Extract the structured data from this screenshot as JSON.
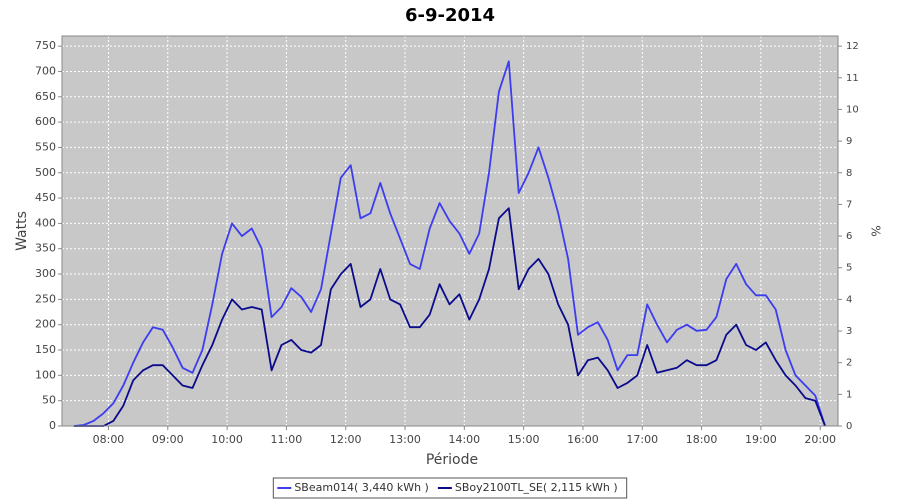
{
  "chart_data": {
    "type": "line",
    "title": "6-9-2014",
    "x_label": "Période",
    "y_label": "Watts",
    "y2_label": "%",
    "x": [
      445,
      455,
      465,
      475,
      485,
      495,
      505,
      515,
      525,
      535,
      545,
      555,
      565,
      575,
      585,
      595,
      605,
      615,
      625,
      635,
      645,
      655,
      665,
      675,
      685,
      695,
      705,
      715,
      725,
      735,
      745,
      755,
      765,
      775,
      785,
      795,
      805,
      815,
      825,
      835,
      845,
      855,
      865,
      875,
      885,
      895,
      905,
      915,
      925,
      935,
      945,
      955,
      965,
      975,
      985,
      995,
      1005,
      1015,
      1025,
      1035,
      1045,
      1055,
      1065,
      1075,
      1085,
      1095,
      1105,
      1115,
      1125,
      1135,
      1145,
      1155,
      1165,
      1175,
      1185,
      1195,
      1205
    ],
    "series": [
      {
        "name": "SBeam014( 3,440 kWh )",
        "color": "#3c3cf0",
        "values": [
          0,
          2,
          10,
          25,
          45,
          80,
          125,
          165,
          195,
          190,
          155,
          115,
          105,
          150,
          240,
          340,
          400,
          375,
          390,
          350,
          215,
          235,
          272,
          255,
          225,
          270,
          380,
          490,
          515,
          410,
          420,
          480,
          420,
          370,
          320,
          310,
          390,
          440,
          405,
          380,
          340,
          380,
          500,
          660,
          720,
          460,
          500,
          550,
          490,
          420,
          330,
          180,
          195,
          205,
          170,
          110,
          140,
          140,
          240,
          200,
          165,
          190,
          200,
          188,
          190,
          215,
          290,
          320,
          280,
          258,
          258,
          230,
          150,
          100,
          80,
          60,
          0
        ]
      },
      {
        "name": "SBoy2100TL_SE( 2,115 kWh )",
        "color": "#0a0a8c",
        "values": [
          0,
          0,
          0,
          0,
          10,
          40,
          90,
          110,
          120,
          120,
          100,
          80,
          75,
          120,
          160,
          210,
          250,
          230,
          235,
          230,
          110,
          160,
          170,
          150,
          145,
          160,
          270,
          300,
          320,
          235,
          250,
          310,
          250,
          240,
          195,
          195,
          220,
          280,
          240,
          260,
          210,
          250,
          310,
          410,
          430,
          270,
          310,
          330,
          300,
          240,
          200,
          100,
          130,
          135,
          110,
          75,
          85,
          100,
          160,
          105,
          110,
          115,
          130,
          120,
          120,
          130,
          180,
          200,
          160,
          150,
          165,
          130,
          100,
          80,
          55,
          50,
          0
        ]
      }
    ],
    "xlim": [
      433,
      1218
    ],
    "xticks": [
      {
        "value": 480,
        "label": "08:00"
      },
      {
        "value": 540,
        "label": "09:00"
      },
      {
        "value": 600,
        "label": "10:00"
      },
      {
        "value": 660,
        "label": "11:00"
      },
      {
        "value": 720,
        "label": "12:00"
      },
      {
        "value": 780,
        "label": "13:00"
      },
      {
        "value": 840,
        "label": "14:00"
      },
      {
        "value": 900,
        "label": "15:00"
      },
      {
        "value": 960,
        "label": "16:00"
      },
      {
        "value": 1020,
        "label": "17:00"
      },
      {
        "value": 1080,
        "label": "18:00"
      },
      {
        "value": 1140,
        "label": "19:00"
      },
      {
        "value": 1200,
        "label": "20:00"
      }
    ],
    "ylim": [
      0,
      770
    ],
    "yticks": [
      0,
      50,
      100,
      150,
      200,
      250,
      300,
      350,
      400,
      450,
      500,
      550,
      600,
      650,
      700,
      750
    ],
    "y2lim": [
      0,
      12.32
    ],
    "y2ticks": [
      0,
      1,
      2,
      3,
      4,
      5,
      6,
      7,
      8,
      9,
      10,
      11,
      12
    ],
    "grid": true,
    "legend": "bottom"
  }
}
